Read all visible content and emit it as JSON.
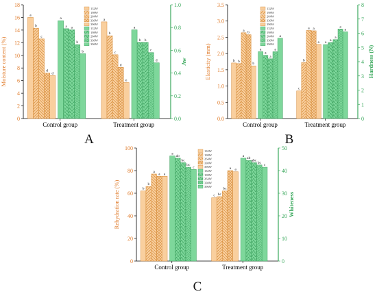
{
  "colors": {
    "orange": "#f3a84c",
    "orange_fill": "#f9cf9e",
    "green": "#4fc077",
    "green_fill": "#7ed79b",
    "axis_left": "#e07b2a",
    "axis_right": "#3aa85c"
  },
  "chart_data": [
    {
      "type": "bar",
      "panel_label": "A",
      "categories": [
        "Control group",
        "Treatment group"
      ],
      "left_axis": {
        "label": "Moisture content (%)",
        "ylim": [
          0,
          18
        ],
        "ticks": [
          "0",
          "2",
          "4",
          "6",
          "8",
          "10",
          "12",
          "14",
          "16",
          "18"
        ]
      },
      "right_axis": {
        "label": "Aw",
        "ylim": [
          0,
          1.0
        ],
        "ticks": [
          "0.0",
          "0.2",
          "0.4",
          "0.6",
          "0.8",
          "1.0"
        ]
      },
      "legend_orange": [
        "132W",
        "198W",
        "264W",
        "330W",
        "396W"
      ],
      "legend_green": [
        "132W",
        "198W",
        "264W",
        "330W",
        "396W"
      ],
      "series_left": [
        {
          "name": "132W",
          "values": [
            16.0,
            15.3
          ],
          "sig": [
            "a",
            "a"
          ]
        },
        {
          "name": "198W",
          "values": [
            14.3,
            13.1
          ],
          "sig": [
            "b",
            "b"
          ]
        },
        {
          "name": "264W",
          "values": [
            12.6,
            10.1
          ],
          "sig": [
            "c",
            "c"
          ]
        },
        {
          "name": "330W",
          "values": [
            7.2,
            8.1
          ],
          "sig": [
            "d",
            "d"
          ]
        },
        {
          "name": "396W",
          "values": [
            6.8,
            5.7
          ],
          "sig": [
            "d",
            "e"
          ]
        }
      ],
      "series_right": [
        {
          "name": "132W",
          "values": [
            0.86,
            0.78
          ],
          "sig": [
            "a",
            "a"
          ]
        },
        {
          "name": "198W",
          "values": [
            0.79,
            0.67
          ],
          "sig": [
            "a",
            "b"
          ]
        },
        {
          "name": "264W",
          "values": [
            0.78,
            0.67
          ],
          "sig": [
            "a",
            "b"
          ]
        },
        {
          "name": "330W",
          "values": [
            0.65,
            0.58
          ],
          "sig": [
            "b",
            "c"
          ]
        },
        {
          "name": "396W",
          "values": [
            0.57,
            0.49
          ],
          "sig": [
            "b",
            "d"
          ]
        }
      ]
    },
    {
      "type": "bar",
      "panel_label": "B",
      "categories": [
        "Control group",
        "Treatment group"
      ],
      "left_axis": {
        "label": "Elasticity (mm)",
        "ylim": [
          0,
          3.5
        ],
        "ticks": [
          "0.0",
          "0.5",
          "1.0",
          "1.5",
          "2.0",
          "2.5",
          "3.0",
          "3.5"
        ]
      },
      "right_axis": {
        "label": "Hardness (N)",
        "ylim": [
          0,
          8
        ],
        "ticks": [
          "0",
          "1",
          "2",
          "3",
          "4",
          "5",
          "6",
          "7",
          "8"
        ]
      },
      "legend_orange": [
        "132W",
        "198W",
        "264W",
        "330W",
        "396W"
      ],
      "legend_green": [
        "132W",
        "198W",
        "264W",
        "330W",
        "396W"
      ],
      "series_left": [
        {
          "name": "132W",
          "values": [
            1.71,
            0.85
          ],
          "sig": [
            "b",
            "c"
          ]
        },
        {
          "name": "198W",
          "values": [
            1.69,
            1.72
          ],
          "sig": [
            "b",
            "b"
          ]
        },
        {
          "name": "264W",
          "values": [
            2.64,
            2.71
          ],
          "sig": [
            "a",
            "a"
          ]
        },
        {
          "name": "330W",
          "values": [
            2.58,
            2.7
          ],
          "sig": [
            "b",
            "a"
          ]
        },
        {
          "name": "396W",
          "values": [
            1.62,
            2.28
          ],
          "sig": [
            "b",
            "a"
          ]
        }
      ],
      "series_right": [
        {
          "name": "132W",
          "values": [
            4.7,
            5.2
          ],
          "sig": [
            "a",
            "a"
          ]
        },
        {
          "name": "198W",
          "values": [
            4.45,
            5.35
          ],
          "sig": [
            "a",
            "a"
          ]
        },
        {
          "name": "264W",
          "values": [
            4.2,
            5.55
          ],
          "sig": [
            "a",
            "a"
          ]
        },
        {
          "name": "330W",
          "values": [
            4.7,
            6.3
          ],
          "sig": [
            "a",
            "a"
          ]
        },
        {
          "name": "396W",
          "values": [
            5.65,
            6.1
          ],
          "sig": [
            "a",
            "a"
          ]
        }
      ]
    },
    {
      "type": "bar",
      "panel_label": "C",
      "categories": [
        "Control group",
        "Treatment group"
      ],
      "left_axis": {
        "label": "Rehydration rate (%)",
        "ylim": [
          0,
          100
        ],
        "ticks": [
          "0",
          "20",
          "40",
          "60",
          "80",
          "100"
        ]
      },
      "right_axis": {
        "label": "Whiteness",
        "ylim": [
          0,
          50
        ],
        "ticks": [
          "0",
          "10",
          "20",
          "30",
          "40",
          "50"
        ]
      },
      "legend_orange": [
        "132W",
        "198W",
        "264W",
        "330W",
        "396W"
      ],
      "legend_green": [
        "132W",
        "198W",
        "264W",
        "330W",
        "396W"
      ],
      "series_left": [
        {
          "name": "132W",
          "values": [
            62,
            56
          ],
          "sig": [
            "b",
            "c"
          ]
        },
        {
          "name": "198W",
          "values": [
            66,
            57
          ],
          "sig": [
            "b",
            "bc"
          ]
        },
        {
          "name": "264W",
          "values": [
            77,
            62
          ],
          "sig": [
            "a",
            "bc"
          ]
        },
        {
          "name": "330W",
          "values": [
            75,
            80
          ],
          "sig": [
            "a",
            "a"
          ]
        },
        {
          "name": "396W",
          "values": [
            75,
            79
          ],
          "sig": [
            "a",
            "a"
          ]
        }
      ],
      "series_right": [
        {
          "name": "132W",
          "values": [
            46.5,
            45.5
          ],
          "sig": [
            "a",
            "a"
          ]
        },
        {
          "name": "198W",
          "values": [
            45.5,
            44.5
          ],
          "sig": [
            "ab",
            "ab"
          ]
        },
        {
          "name": "264W",
          "values": [
            43.5,
            43.5
          ],
          "sig": [
            "bc",
            "abc"
          ]
        },
        {
          "name": "330W",
          "values": [
            41.5,
            42.5
          ],
          "sig": [
            "bc",
            "bc"
          ]
        },
        {
          "name": "396W",
          "values": [
            40.5,
            41.5
          ],
          "sig": [
            "c",
            "c"
          ]
        }
      ]
    }
  ]
}
